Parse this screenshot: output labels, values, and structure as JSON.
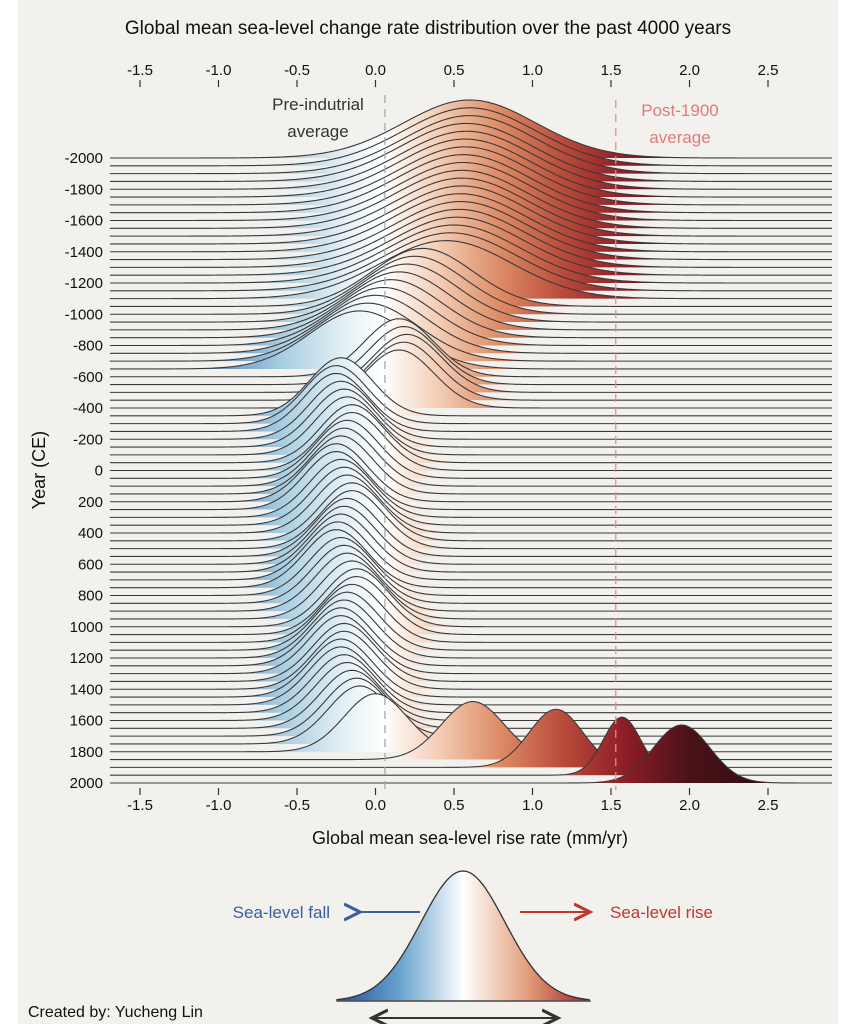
{
  "chart_data": {
    "type": "ridgeline",
    "title": "Global mean sea-level change rate distribution over the past 4000 years",
    "xlabel": "Global mean sea-level rise rate (mm/yr)",
    "ylabel": "Year (CE)",
    "xlim": [
      -1.7,
      2.9
    ],
    "ylim": [
      -2000,
      2000
    ],
    "x_ticks": [
      "-1.5",
      "-1.0",
      "-0.5",
      "0.0",
      "0.5",
      "1.0",
      "1.5",
      "2.0",
      "2.5"
    ],
    "x_tick_values": [
      -1.5,
      -1.0,
      -0.5,
      0.0,
      0.5,
      1.0,
      1.5,
      2.0,
      2.5
    ],
    "y_ticks": [
      "-2000",
      "-1800",
      "-1600",
      "-1400",
      "-1200",
      "-1000",
      "-800",
      "-600",
      "-400",
      "-200",
      "0",
      "200",
      "400",
      "600",
      "800",
      "1000",
      "1200",
      "1400",
      "1600",
      "1800",
      "2000"
    ],
    "y_tick_values": [
      -2000,
      -1800,
      -1600,
      -1400,
      -1200,
      -1000,
      -800,
      -600,
      -400,
      -200,
      0,
      200,
      400,
      600,
      800,
      1000,
      1200,
      1400,
      1600,
      1800,
      2000
    ],
    "ridge_year_start": -2000,
    "ridge_year_step": 50,
    "ridge_means": [
      0.6,
      0.6,
      0.6,
      0.58,
      0.58,
      0.57,
      0.57,
      0.56,
      0.56,
      0.55,
      0.55,
      0.55,
      0.54,
      0.54,
      0.53,
      0.52,
      0.5,
      0.48,
      0.45,
      0.3,
      0.25,
      0.2,
      0.15,
      0.1,
      0.05,
      0.0,
      -0.05,
      -0.1,
      0.15,
      0.18,
      0.2,
      0.18,
      0.15,
      -0.22,
      -0.25,
      -0.25,
      -0.22,
      -0.2,
      -0.18,
      -0.15,
      -0.15,
      -0.18,
      -0.2,
      -0.22,
      -0.25,
      -0.25,
      -0.22,
      -0.2,
      -0.18,
      -0.15,
      -0.15,
      -0.18,
      -0.2,
      -0.22,
      -0.24,
      -0.25,
      -0.22,
      -0.2,
      -0.18,
      -0.15,
      -0.12,
      -0.12,
      -0.15,
      -0.18,
      -0.2,
      -0.22,
      -0.22,
      -0.2,
      -0.2,
      -0.22,
      -0.22,
      -0.2,
      -0.18,
      -0.15,
      -0.12,
      -0.1,
      0.0,
      0.62,
      1.15,
      1.57,
      1.95
    ],
    "ridge_sds": [
      0.42,
      0.42,
      0.42,
      0.42,
      0.42,
      0.42,
      0.42,
      0.42,
      0.42,
      0.42,
      0.42,
      0.42,
      0.42,
      0.42,
      0.42,
      0.42,
      0.42,
      0.42,
      0.42,
      0.32,
      0.32,
      0.32,
      0.32,
      0.32,
      0.32,
      0.32,
      0.32,
      0.32,
      0.22,
      0.22,
      0.22,
      0.22,
      0.22,
      0.2,
      0.2,
      0.2,
      0.2,
      0.2,
      0.2,
      0.2,
      0.2,
      0.2,
      0.2,
      0.2,
      0.2,
      0.2,
      0.2,
      0.2,
      0.2,
      0.2,
      0.2,
      0.2,
      0.2,
      0.2,
      0.2,
      0.2,
      0.2,
      0.2,
      0.2,
      0.2,
      0.2,
      0.2,
      0.2,
      0.2,
      0.2,
      0.2,
      0.2,
      0.2,
      0.2,
      0.2,
      0.2,
      0.2,
      0.2,
      0.2,
      0.2,
      0.2,
      0.2,
      0.2,
      0.17,
      0.12,
      0.18
    ],
    "reference_lines": [
      {
        "label_line1": "Pre-indutrial",
        "label_line2": "average",
        "value": 0.06,
        "color": "#a8a8a8"
      },
      {
        "label_line1": "Post-1900",
        "label_line2": "average",
        "value": 1.53,
        "color": "#e28f8f"
      }
    ],
    "color_scale": [
      {
        "value": -1.2,
        "color": "#3b73b0"
      },
      {
        "value": -0.6,
        "color": "#a8cde2"
      },
      {
        "value": -0.2,
        "color": "#e4f0f5"
      },
      {
        "value": 0.05,
        "color": "#ffffff"
      },
      {
        "value": 0.4,
        "color": "#f3cdb5"
      },
      {
        "value": 0.8,
        "color": "#dc8a64"
      },
      {
        "value": 1.2,
        "color": "#b84a3a"
      },
      {
        "value": 1.6,
        "color": "#8c1c26"
      },
      {
        "value": 2.0,
        "color": "#4a1218"
      },
      {
        "value": 2.6,
        "color": "#2a0a0e"
      }
    ],
    "grid": false
  },
  "legend": {
    "fall_label": "Sea-level fall",
    "rise_label": "Sea-level rise",
    "fall_color": "#3a5fa0",
    "rise_color": "#c0392b"
  },
  "credit": "Created by: Yucheng Lin",
  "colors": {
    "panel": "#f2f1ee",
    "outline": "#333333"
  }
}
